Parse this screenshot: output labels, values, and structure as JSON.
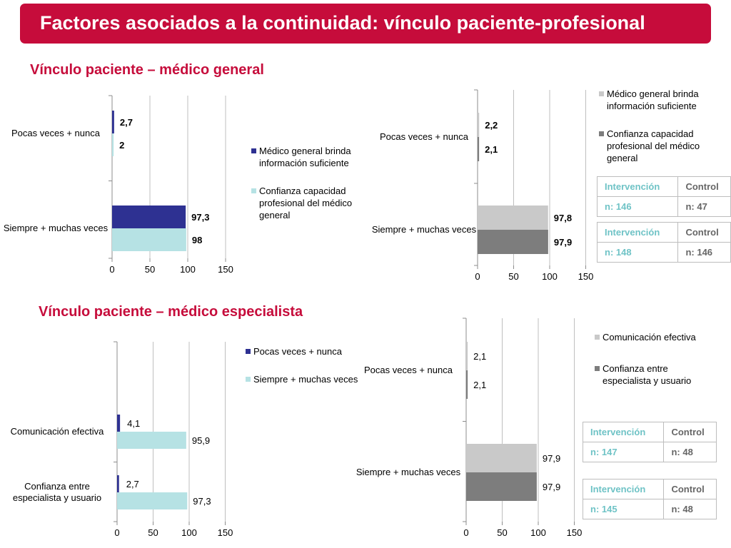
{
  "title": "Factores asociados a la continuidad: vínculo paciente-profesional",
  "sections": {
    "general": "Vínculo paciente – médico general",
    "especialista": "Vínculo paciente – médico especialista"
  },
  "colors": {
    "brand_red": "#c60c3b",
    "navy": "#2e3192",
    "light_cyan": "#b6e2e4",
    "light_gray": "#c9c9c9",
    "dark_gray": "#7d7d7d",
    "table_teal": "#6fc3c6"
  },
  "chart_data": [
    {
      "type": "bar",
      "orientation": "horizontal",
      "categories": [
        "Pocas veces + nunca",
        "Siempre + muchas veces"
      ],
      "series": [
        {
          "name": "Médico general brinda información suficiente",
          "values": [
            2.7,
            97.3
          ],
          "labels": [
            "2,7",
            "97,3"
          ],
          "color": "#2e3192"
        },
        {
          "name": "Confianza capacidad profesional del médico general",
          "values": [
            2,
            98
          ],
          "labels": [
            "2",
            "98"
          ],
          "color": "#b6e2e4"
        }
      ],
      "xlim": [
        0,
        150
      ],
      "ticks": [
        "0",
        "50",
        "100",
        "150"
      ],
      "grid": true,
      "legend": "right"
    },
    {
      "type": "bar",
      "orientation": "horizontal",
      "categories": [
        "Pocas veces + nunca",
        "Siempre + muchas veces"
      ],
      "series": [
        {
          "name": "Médico general brinda información suficiente",
          "values": [
            2.2,
            97.8
          ],
          "labels": [
            "2,2",
            "97,8"
          ],
          "color": "#c9c9c9"
        },
        {
          "name": "Confianza capacidad profesional del médico general",
          "values": [
            2.1,
            97.9
          ],
          "labels": [
            "2,1",
            "97,9"
          ],
          "color": "#7d7d7d"
        }
      ],
      "xlim": [
        0,
        150
      ],
      "ticks": [
        "0",
        "50",
        "100",
        "150"
      ],
      "grid": true,
      "legend": "top-right"
    },
    {
      "type": "bar",
      "orientation": "horizontal",
      "categories": [
        "Comunicación efectiva",
        "Confianza entre especialista y usuario"
      ],
      "series": [
        {
          "name": "Pocas veces + nunca",
          "values": [
            4.1,
            2.7
          ],
          "labels": [
            "4,1",
            "2,7"
          ],
          "color": "#2e3192"
        },
        {
          "name": "Siempre + muchas veces",
          "values": [
            95.9,
            97.3
          ],
          "labels": [
            "95,9",
            "97,3"
          ],
          "color": "#b6e2e4"
        }
      ],
      "xlim": [
        0,
        150
      ],
      "ticks": [
        "0",
        "50",
        "100",
        "150"
      ],
      "grid": true,
      "legend": "right"
    },
    {
      "type": "bar",
      "orientation": "horizontal",
      "categories": [
        "Pocas veces + nunca",
        "Siempre + muchas veces"
      ],
      "series": [
        {
          "name": "Comunicación efectiva",
          "values": [
            2.1,
            97.9
          ],
          "labels": [
            "2,1",
            "97,9"
          ],
          "color": "#c9c9c9"
        },
        {
          "name": "Confianza entre especialista y usuario",
          "values": [
            2.1,
            97.9
          ],
          "labels": [
            "2,1",
            "97,9"
          ],
          "color": "#7d7d7d"
        }
      ],
      "xlim": [
        0,
        150
      ],
      "ticks": [
        "0",
        "50",
        "100",
        "150"
      ],
      "grid": true,
      "legend": "top-right"
    }
  ],
  "tables": [
    {
      "header": [
        "Intervención",
        "Control"
      ],
      "values": [
        "n: 146",
        "n: 47"
      ]
    },
    {
      "header": [
        "Intervención",
        "Control"
      ],
      "values": [
        "n: 148",
        "n: 146"
      ]
    },
    {
      "header": [
        "Intervención",
        "Control"
      ],
      "values": [
        "n: 147",
        "n: 48"
      ]
    },
    {
      "header": [
        "Intervención",
        "Control"
      ],
      "values": [
        "n: 145",
        "n: 48"
      ]
    }
  ]
}
